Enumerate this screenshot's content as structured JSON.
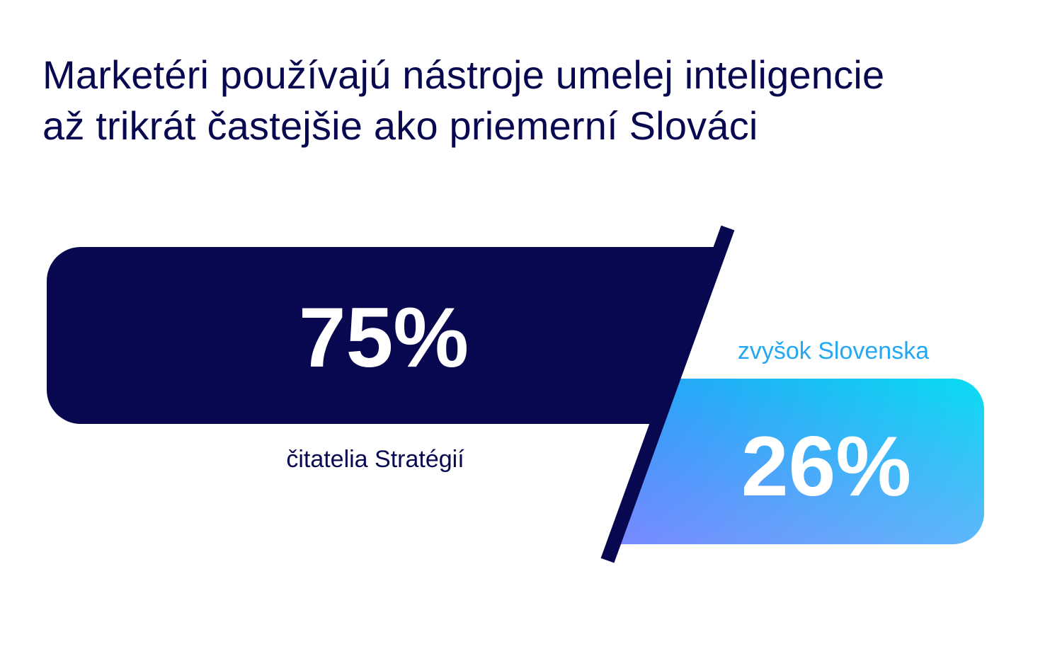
{
  "title": {
    "line1": "Marketéri používajú nástroje umelej inteligencie",
    "line2": "až trikrát častejšie ako priemerní Slováci"
  },
  "colors": {
    "navy": "#07084f",
    "gradient_start": "#4a62ff",
    "gradient_end": "#08ddf2",
    "label_secondary": "#22a8f5",
    "background": "#ffffff"
  },
  "chart_data": {
    "type": "bar",
    "title": "Marketéri používajú nástroje umelej inteligencie až trikrát častejšie ako priemerní Slováci",
    "categories": [
      "čitatelia Stratégií",
      "zvyšok Slovenska"
    ],
    "values": [
      75,
      26
    ],
    "value_labels": [
      "75%",
      "26%"
    ],
    "unit": "%",
    "ylim": [
      0,
      100
    ],
    "grid": false,
    "legend": "none"
  }
}
